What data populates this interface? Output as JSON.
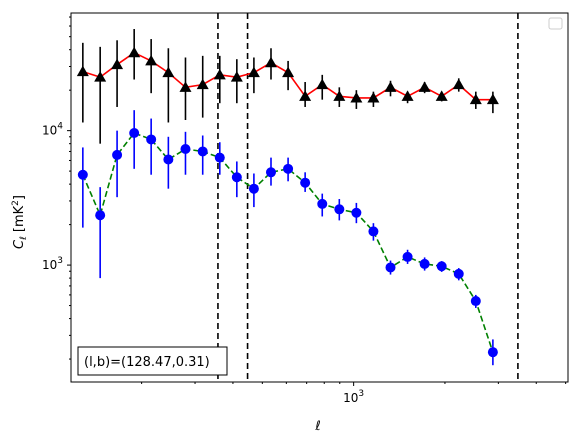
{
  "chart_data": {
    "type": "line",
    "title": "",
    "xlabel": "ℓ",
    "ylabel": "C_ℓ [mK²]",
    "xscale": "log",
    "yscale": "log",
    "xlim": [
      117,
      5090
    ],
    "ylim": [
      135,
      75000
    ],
    "x_tick_labels": [
      {
        "value": 1000,
        "base": "10",
        "exp": "3"
      }
    ],
    "y_tick_labels": [
      {
        "value": 1000,
        "base": "10",
        "exp": "3"
      },
      {
        "value": 10000,
        "base": "10",
        "exp": "4"
      }
    ],
    "grid": false,
    "legend": {
      "placement": "top-right",
      "entries": []
    },
    "annotation": "(l,b)=(128.47,0.31)",
    "vlines": [
      357,
      447,
      3480
    ],
    "series": [
      {
        "marker": "triangle",
        "marker_color": "#000000",
        "line_color": "#ff0000",
        "line_style": "solid",
        "points": [
          {
            "x": 128,
            "y": 27500,
            "lo": 11500,
            "hi": 45000
          },
          {
            "x": 146,
            "y": 25000,
            "lo": 8000,
            "hi": 42000
          },
          {
            "x": 166,
            "y": 31000,
            "lo": 15000,
            "hi": 47000
          },
          {
            "x": 189,
            "y": 38000,
            "lo": 24000,
            "hi": 57000
          },
          {
            "x": 215,
            "y": 33000,
            "lo": 19000,
            "hi": 48000
          },
          {
            "x": 245,
            "y": 27000,
            "lo": 11500,
            "hi": 41000
          },
          {
            "x": 279,
            "y": 21000,
            "lo": 12000,
            "hi": 35000
          },
          {
            "x": 318,
            "y": 22000,
            "lo": 12500,
            "hi": 36000
          },
          {
            "x": 362,
            "y": 26000,
            "lo": 16000,
            "hi": 36000
          },
          {
            "x": 412,
            "y": 25000,
            "lo": 16000,
            "hi": 34000
          },
          {
            "x": 469,
            "y": 27000,
            "lo": 19000,
            "hi": 35000
          },
          {
            "x": 534,
            "y": 32000,
            "lo": 24000,
            "hi": 41000
          },
          {
            "x": 608,
            "y": 27000,
            "lo": 20000,
            "hi": 33000
          },
          {
            "x": 692,
            "y": 18000,
            "lo": 15000,
            "hi": 23000
          },
          {
            "x": 788,
            "y": 22000,
            "lo": 17000,
            "hi": 26000
          },
          {
            "x": 897,
            "y": 18000,
            "lo": 15000,
            "hi": 21000
          },
          {
            "x": 1021,
            "y": 17500,
            "lo": 14500,
            "hi": 20000
          },
          {
            "x": 1162,
            "y": 17500,
            "lo": 15000,
            "hi": 19500
          },
          {
            "x": 1323,
            "y": 21000,
            "lo": 18000,
            "hi": 23500
          },
          {
            "x": 1506,
            "y": 18000,
            "lo": 16000,
            "hi": 19500
          },
          {
            "x": 1714,
            "y": 21000,
            "lo": 19000,
            "hi": 23000
          },
          {
            "x": 1951,
            "y": 18000,
            "lo": 16500,
            "hi": 19500
          },
          {
            "x": 2221,
            "y": 22000,
            "lo": 19500,
            "hi": 24500
          },
          {
            "x": 2528,
            "y": 17000,
            "lo": 14500,
            "hi": 19500
          },
          {
            "x": 2878,
            "y": 17000,
            "lo": 13500,
            "hi": 19500
          }
        ]
      },
      {
        "marker": "circle",
        "marker_color": "#0000ff",
        "line_color": "#008000",
        "line_style": "dashed",
        "points": [
          {
            "x": 128,
            "y": 4700,
            "lo": 1900,
            "hi": 7500
          },
          {
            "x": 146,
            "y": 2350,
            "lo": 800,
            "hi": 3800
          },
          {
            "x": 166,
            "y": 6600,
            "lo": 3200,
            "hi": 10000
          },
          {
            "x": 189,
            "y": 9600,
            "lo": 5200,
            "hi": 14200
          },
          {
            "x": 215,
            "y": 8600,
            "lo": 4700,
            "hi": 12300
          },
          {
            "x": 245,
            "y": 6100,
            "lo": 3700,
            "hi": 9000
          },
          {
            "x": 279,
            "y": 7300,
            "lo": 4700,
            "hi": 9800
          },
          {
            "x": 318,
            "y": 7000,
            "lo": 4700,
            "hi": 9200
          },
          {
            "x": 362,
            "y": 6300,
            "lo": 4700,
            "hi": 8200
          },
          {
            "x": 412,
            "y": 4500,
            "lo": 3200,
            "hi": 5900
          },
          {
            "x": 469,
            "y": 3700,
            "lo": 2700,
            "hi": 4800
          },
          {
            "x": 534,
            "y": 4900,
            "lo": 3900,
            "hi": 6300
          },
          {
            "x": 608,
            "y": 5200,
            "lo": 4200,
            "hi": 6300
          },
          {
            "x": 692,
            "y": 4100,
            "lo": 3500,
            "hi": 4900
          },
          {
            "x": 788,
            "y": 2850,
            "lo": 2300,
            "hi": 3400
          },
          {
            "x": 897,
            "y": 2600,
            "lo": 2150,
            "hi": 3100
          },
          {
            "x": 1021,
            "y": 2450,
            "lo": 2050,
            "hi": 2900
          },
          {
            "x": 1162,
            "y": 1780,
            "lo": 1520,
            "hi": 2050
          },
          {
            "x": 1323,
            "y": 960,
            "lo": 850,
            "hi": 1080
          },
          {
            "x": 1506,
            "y": 1150,
            "lo": 1020,
            "hi": 1300
          },
          {
            "x": 1714,
            "y": 1020,
            "lo": 910,
            "hi": 1140
          },
          {
            "x": 1951,
            "y": 980,
            "lo": 890,
            "hi": 1070
          },
          {
            "x": 2221,
            "y": 860,
            "lo": 770,
            "hi": 950
          },
          {
            "x": 2528,
            "y": 540,
            "lo": 480,
            "hi": 600
          },
          {
            "x": 2878,
            "y": 225,
            "lo": 180,
            "hi": 280
          }
        ]
      }
    ]
  }
}
